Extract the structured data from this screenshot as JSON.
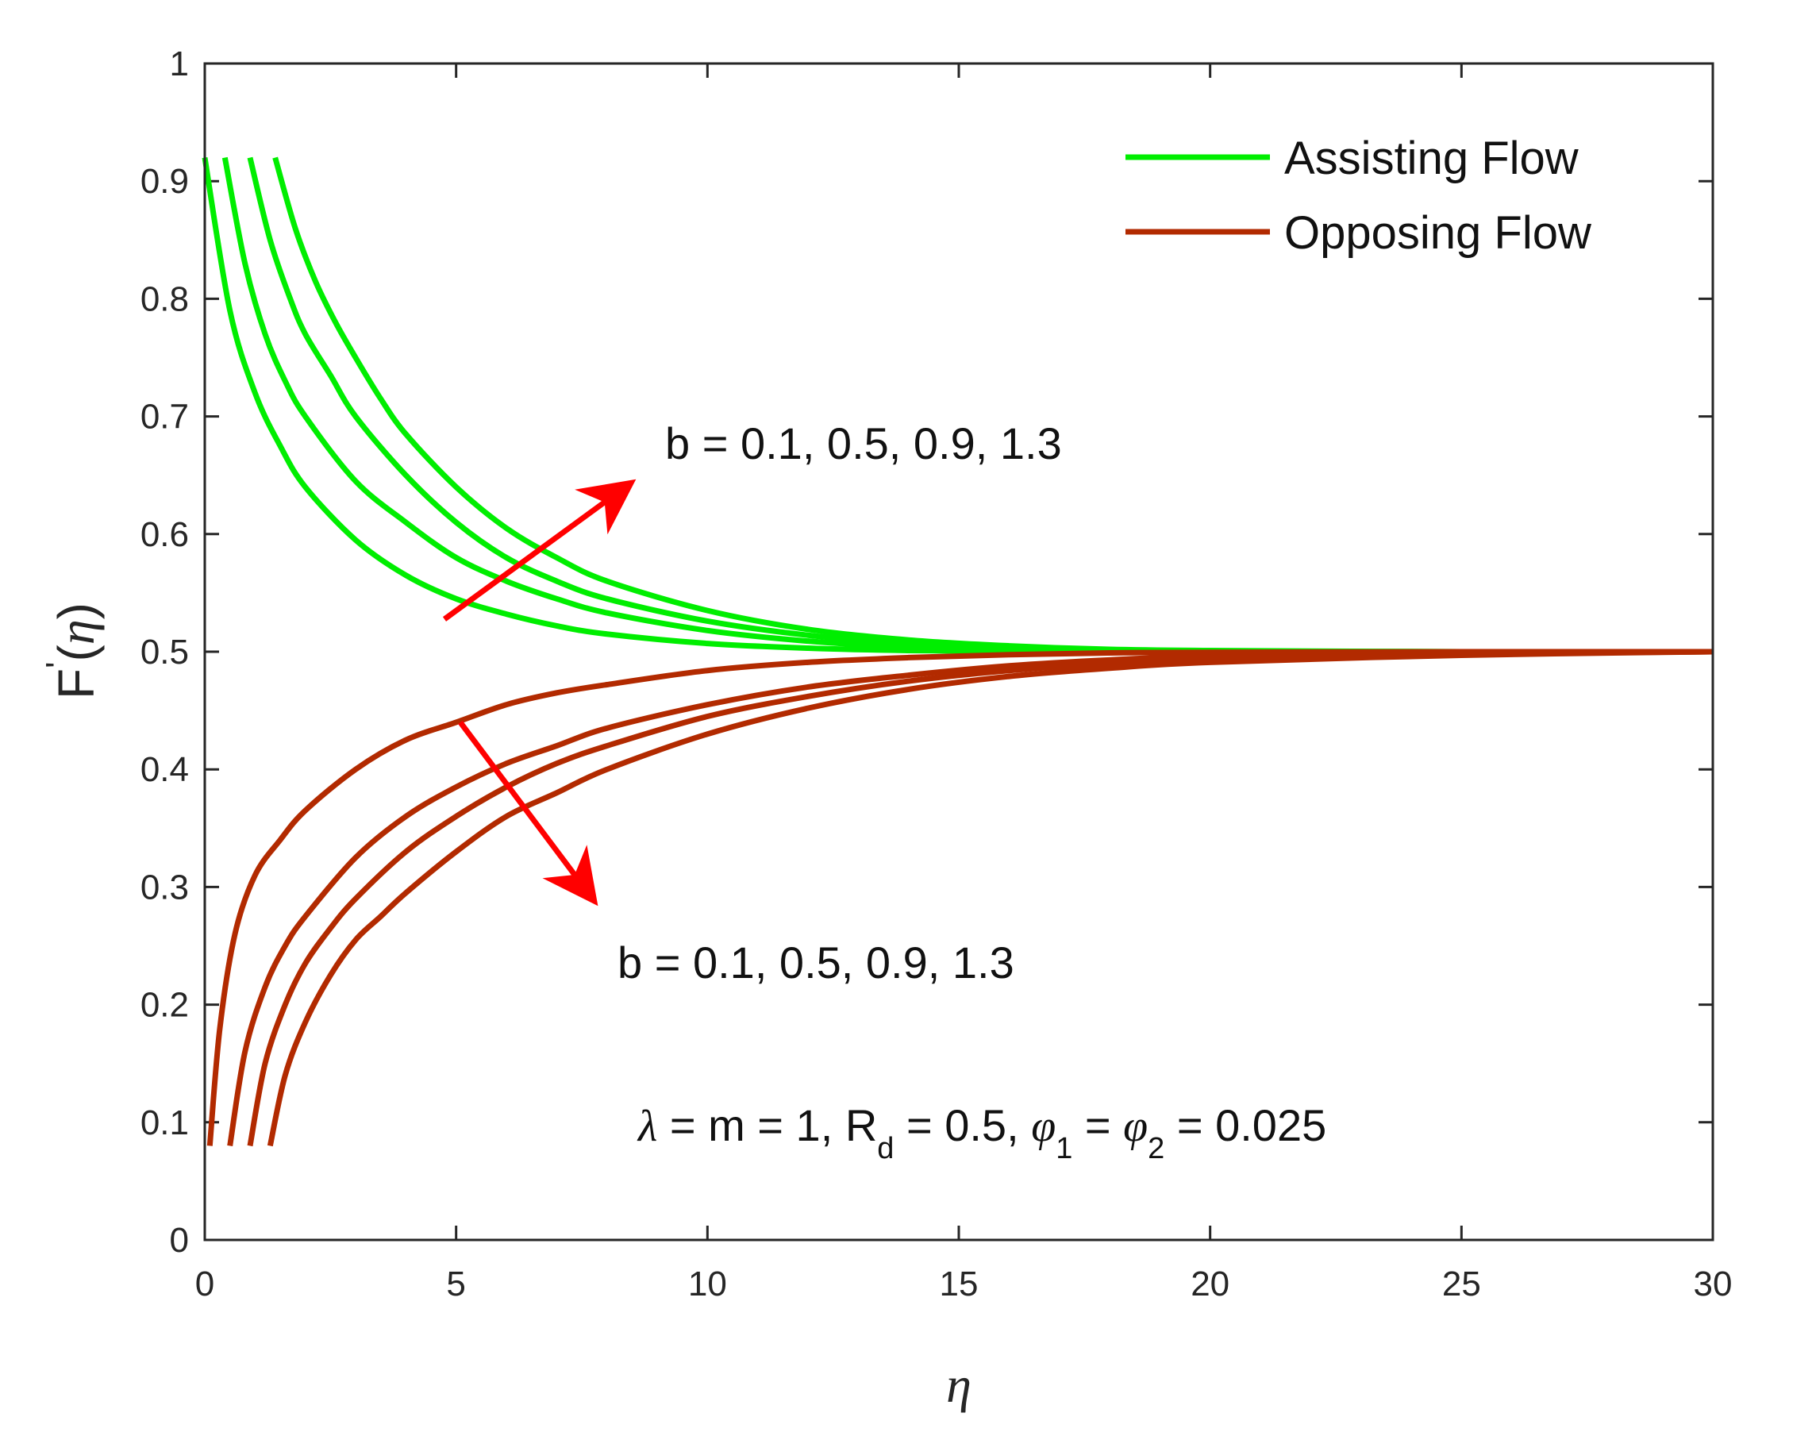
{
  "chart_data": {
    "type": "line",
    "title": "",
    "xlabel": "η",
    "ylabel": {
      "main": "F",
      "prime": "'",
      "open": "(",
      "var": "η",
      "close": ")"
    },
    "xlim": [
      0,
      30
    ],
    "ylim": [
      0,
      1
    ],
    "xticks": [
      0,
      5,
      10,
      15,
      20,
      25,
      30
    ],
    "yticks": [
      0,
      0.1,
      0.2,
      0.3,
      0.4,
      0.5,
      0.6,
      0.7,
      0.8,
      0.9,
      1
    ],
    "xtick_labels": [
      "0",
      "5",
      "10",
      "15",
      "20",
      "25",
      "30"
    ],
    "ytick_labels": [
      "0",
      "0.1",
      "0.2",
      "0.3",
      "0.4",
      "0.5",
      "0.6",
      "0.7",
      "0.8",
      "0.9",
      "1"
    ],
    "grid": false,
    "legend": {
      "placement": "top-right",
      "entries": [
        {
          "label": "Assisting Flow",
          "color": "#00ee00"
        },
        {
          "label": "Opposing Flow",
          "color": "#b22a00"
        }
      ]
    },
    "colors": {
      "assisting": "#00ee00",
      "opposing": "#b22a00",
      "arrow": "#ff0000"
    },
    "series": [
      {
        "group": "assisting",
        "b": 0.1,
        "x": [
          0,
          0.5,
          1,
          1.5,
          2,
          3,
          4,
          5,
          6,
          7,
          8,
          10,
          12,
          14,
          16,
          18,
          20,
          25,
          30
        ],
        "y": [
          0.92,
          0.79,
          0.72,
          0.675,
          0.64,
          0.595,
          0.565,
          0.545,
          0.532,
          0.522,
          0.515,
          0.507,
          0.503,
          0.501,
          0.5005,
          0.5,
          0.5,
          0.5,
          0.5
        ]
      },
      {
        "group": "assisting",
        "b": 0.5,
        "x": [
          0.4,
          0.8,
          1.2,
          1.6,
          2,
          3,
          4,
          5,
          6,
          7,
          8,
          10,
          12,
          14,
          16,
          18,
          20,
          25,
          30
        ],
        "y": [
          0.92,
          0.83,
          0.77,
          0.73,
          0.7,
          0.645,
          0.61,
          0.58,
          0.56,
          0.545,
          0.533,
          0.518,
          0.509,
          0.504,
          0.502,
          0.501,
          0.5,
          0.5,
          0.5
        ]
      },
      {
        "group": "assisting",
        "b": 0.9,
        "x": [
          0.9,
          1.3,
          1.7,
          2,
          2.5,
          3,
          4,
          5,
          6,
          7,
          8,
          10,
          12,
          14,
          16,
          18,
          20,
          25,
          30
        ],
        "y": [
          0.92,
          0.85,
          0.8,
          0.77,
          0.735,
          0.7,
          0.65,
          0.61,
          0.58,
          0.56,
          0.545,
          0.526,
          0.514,
          0.507,
          0.503,
          0.5015,
          0.5005,
          0.5,
          0.5
        ]
      },
      {
        "group": "assisting",
        "b": 1.3,
        "x": [
          1.4,
          1.8,
          2.2,
          2.6,
          3,
          3.5,
          4,
          5,
          6,
          7,
          8,
          10,
          12,
          14,
          16,
          18,
          20,
          25,
          30
        ],
        "y": [
          0.92,
          0.86,
          0.815,
          0.78,
          0.75,
          0.715,
          0.685,
          0.64,
          0.605,
          0.58,
          0.56,
          0.535,
          0.519,
          0.51,
          0.505,
          0.502,
          0.501,
          0.5,
          0.5
        ]
      },
      {
        "group": "opposing",
        "b": 0.1,
        "x": [
          0.1,
          0.3,
          0.6,
          1,
          1.5,
          2,
          3,
          4,
          5,
          6,
          7,
          8,
          10,
          12,
          14,
          16,
          18,
          20,
          25,
          30
        ],
        "y": [
          0.08,
          0.18,
          0.26,
          0.31,
          0.34,
          0.365,
          0.4,
          0.425,
          0.44,
          0.455,
          0.465,
          0.472,
          0.484,
          0.491,
          0.495,
          0.4975,
          0.499,
          0.4995,
          0.5,
          0.5
        ]
      },
      {
        "group": "opposing",
        "b": 0.5,
        "x": [
          0.5,
          0.8,
          1.2,
          1.6,
          2,
          3,
          4,
          5,
          6,
          7,
          8,
          10,
          12,
          14,
          16,
          18,
          20,
          25,
          30
        ],
        "y": [
          0.08,
          0.16,
          0.215,
          0.25,
          0.275,
          0.325,
          0.36,
          0.385,
          0.405,
          0.42,
          0.435,
          0.455,
          0.47,
          0.48,
          0.488,
          0.493,
          0.496,
          0.499,
          0.5
        ]
      },
      {
        "group": "opposing",
        "b": 0.9,
        "x": [
          0.9,
          1.2,
          1.6,
          2,
          2.5,
          3,
          4,
          5,
          6,
          7,
          8,
          10,
          12,
          14,
          16,
          18,
          20,
          25,
          30
        ],
        "y": [
          0.08,
          0.15,
          0.2,
          0.235,
          0.265,
          0.29,
          0.33,
          0.36,
          0.385,
          0.405,
          0.42,
          0.445,
          0.462,
          0.475,
          0.484,
          0.49,
          0.494,
          0.498,
          0.5
        ]
      },
      {
        "group": "opposing",
        "b": 1.3,
        "x": [
          1.3,
          1.6,
          2,
          2.5,
          3,
          3.5,
          4,
          5,
          6,
          7,
          8,
          10,
          12,
          14,
          16,
          18,
          20,
          25,
          30
        ],
        "y": [
          0.08,
          0.14,
          0.185,
          0.225,
          0.255,
          0.275,
          0.295,
          0.33,
          0.36,
          0.38,
          0.4,
          0.43,
          0.452,
          0.468,
          0.479,
          0.486,
          0.491,
          0.497,
          0.5
        ]
      }
    ],
    "annotations": {
      "assisting_b": "b = 0.1, 0.5, 0.9, 1.3",
      "opposing_b": "b = 0.1, 0.5, 0.9, 1.3",
      "params": {
        "lambda": "λ",
        "part1": " = m = 1, R",
        "sub_d": "d",
        "part2": " = 0.5, ",
        "phi": "φ",
        "sub_1": "1",
        "part3": " = ",
        "sub_2": "2",
        "part4": " = 0.025"
      }
    }
  }
}
